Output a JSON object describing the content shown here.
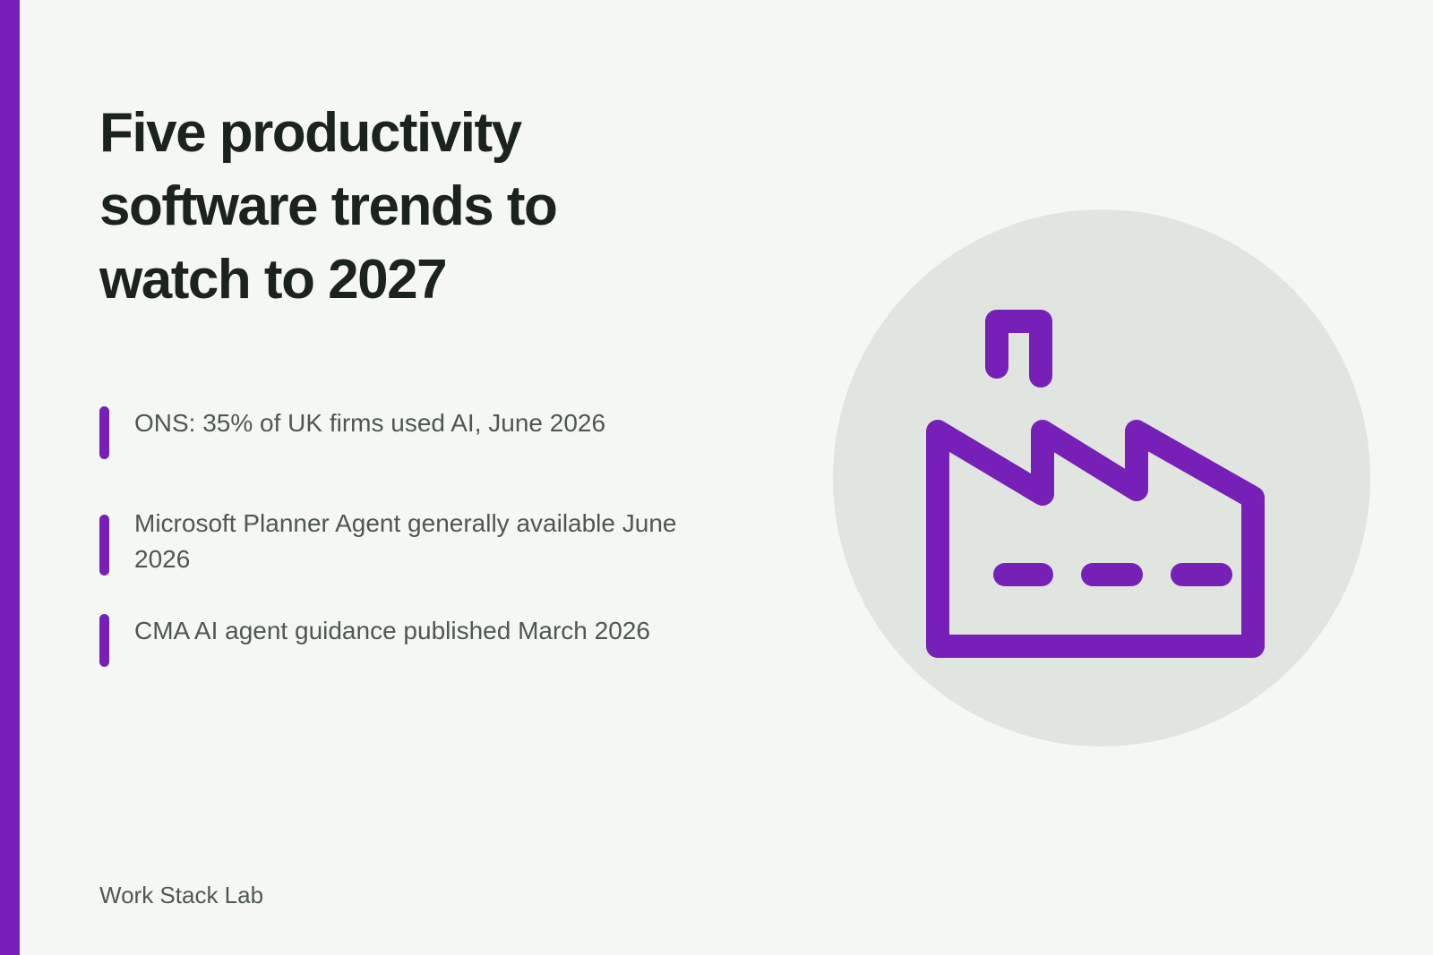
{
  "title": "Five productivity software trends to watch to 2027",
  "facts": [
    "ONS: 35% of UK firms used AI, June 2026",
    "Microsoft Planner Agent generally available June 2026",
    "CMA AI agent guidance published March 2026"
  ],
  "footer": "Work Stack Lab",
  "illustration": {
    "icon": "factory-icon"
  },
  "colors": {
    "accent": "#7620b8",
    "background": "#f5f7f4",
    "circle": "#e1e5df",
    "title_text": "#1b231d",
    "body_text": "#4d5850"
  }
}
